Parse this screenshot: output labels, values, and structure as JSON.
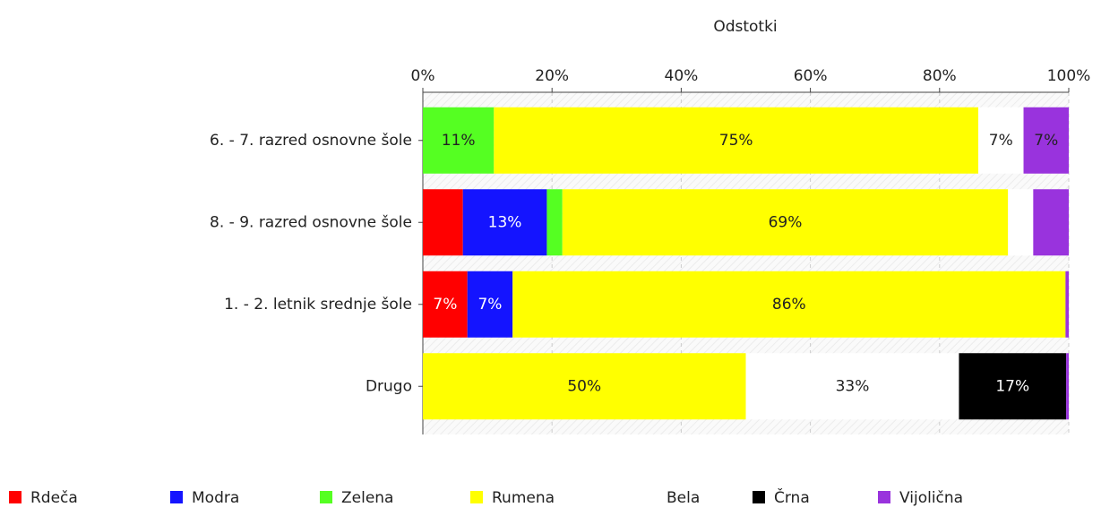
{
  "chart_data": {
    "type": "stacked_barh",
    "title": "Odstotki",
    "categories": [
      "6. - 7. razred osnovne šole",
      "8. - 9. razred osnovne šole",
      "1. - 2. letnik srednje šole",
      "Drugo"
    ],
    "series": [
      {
        "name": "Rdeča",
        "color": "#ff0000",
        "values": [
          0,
          6.2,
          6.9,
          0
        ],
        "value_labels": [
          null,
          null,
          "7%",
          null
        ]
      },
      {
        "name": "Modra",
        "color": "#1414ff",
        "values": [
          0,
          13,
          7,
          0
        ],
        "value_labels": [
          null,
          "13%",
          "7%",
          null
        ]
      },
      {
        "name": "Zelena",
        "color": "#55ff22",
        "values": [
          11,
          2.4,
          0,
          0
        ],
        "value_labels": [
          "11%",
          null,
          null,
          null
        ]
      },
      {
        "name": "Rumena",
        "color": "#ffff00",
        "values": [
          75,
          69,
          85.6,
          50
        ],
        "value_labels": [
          "75%",
          "69%",
          "86%",
          "50%"
        ]
      },
      {
        "name": "Bela",
        "color": "#ffffff",
        "values": [
          7,
          3.9,
          0,
          33
        ],
        "value_labels": [
          "7%",
          null,
          null,
          "33%"
        ]
      },
      {
        "name": "Črna",
        "color": "#000000",
        "values": [
          0,
          0,
          0,
          16.6
        ],
        "value_labels": [
          null,
          null,
          null,
          "17%"
        ]
      },
      {
        "name": "Vijolična",
        "color": "#9933dd",
        "values": [
          7,
          5.5,
          0.5,
          0.4
        ],
        "value_labels": [
          "7%",
          null,
          null,
          null
        ]
      }
    ],
    "xlim": [
      0,
      100
    ],
    "xticks": [
      {
        "value": 0,
        "label": "0%"
      },
      {
        "value": 20,
        "label": "20%"
      },
      {
        "value": 40,
        "label": "40%"
      },
      {
        "value": 60,
        "label": "60%"
      },
      {
        "value": 80,
        "label": "80%"
      },
      {
        "value": 100,
        "label": "100%"
      }
    ],
    "grid": true
  }
}
